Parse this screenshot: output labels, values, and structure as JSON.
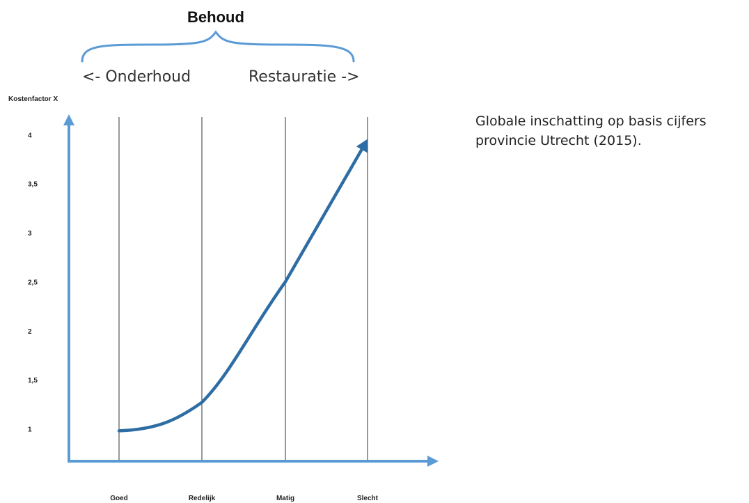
{
  "header": {
    "title": "Behoud",
    "left_label": "<- Onderhoud",
    "right_label": "Restauratie ->"
  },
  "note": {
    "line1": "Globale inschatting op basis cijfers",
    "line2": "provincie Utrecht (2015)."
  },
  "colors": {
    "axis": "#5b9bd5",
    "curve": "#2e6da4",
    "brace": "#5b9bd5",
    "gridline": "#555555"
  },
  "chart_data": {
    "type": "line",
    "title": "",
    "ylabel": "Kostenfactor X",
    "xlabel": "",
    "categories": [
      "Goed",
      "Redelijk",
      "Matig",
      "Slecht"
    ],
    "yticks": [
      "1",
      "1,5",
      "2",
      "2,5",
      "3",
      "3,5",
      "4"
    ],
    "ylim": [
      0.67,
      4.18
    ],
    "series": [
      {
        "values": [
          0.98,
          1.27,
          2.5,
          3.95
        ]
      }
    ],
    "grid": "vertical lines at categories",
    "legend": "none"
  }
}
